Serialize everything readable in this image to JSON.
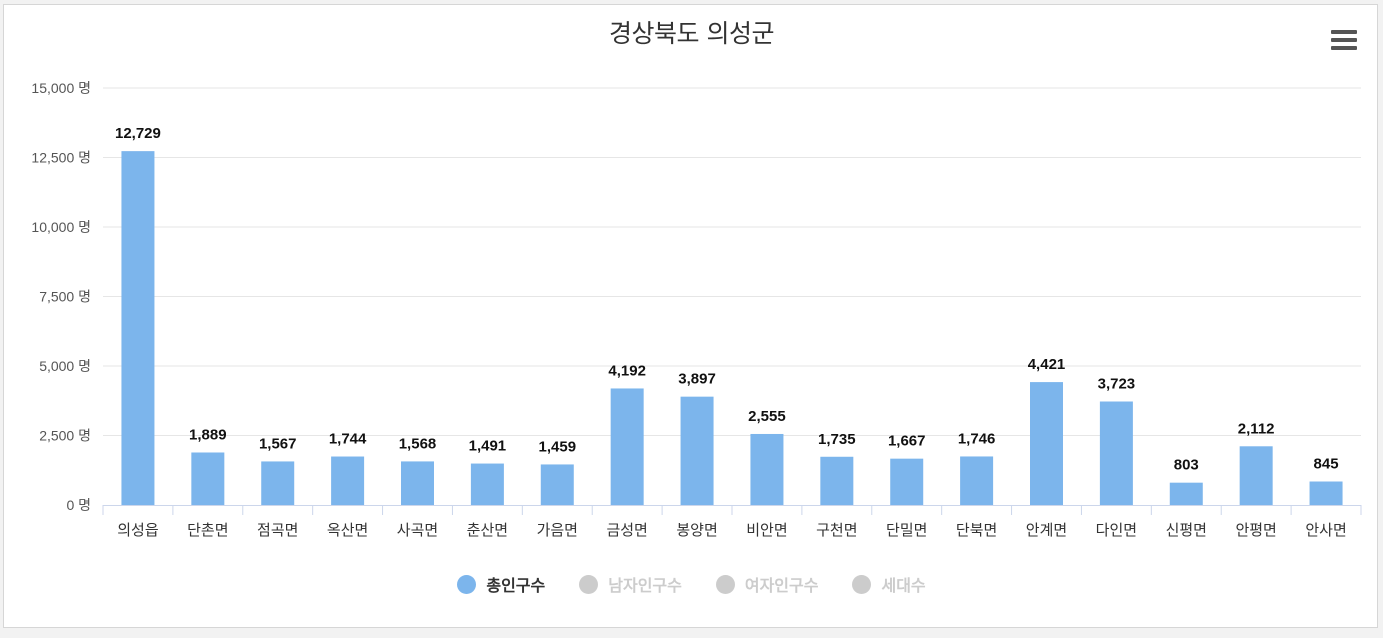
{
  "chart_data": {
    "type": "bar",
    "title": "경상북도 의성군",
    "categories": [
      "의성읍",
      "단촌면",
      "점곡면",
      "옥산면",
      "사곡면",
      "춘산면",
      "가음면",
      "금성면",
      "봉양면",
      "비안면",
      "구천면",
      "단밀면",
      "단북면",
      "안계면",
      "다인면",
      "신평면",
      "안평면",
      "안사면"
    ],
    "series": [
      {
        "name": "총인구수",
        "values": [
          12729,
          1889,
          1567,
          1744,
          1568,
          1491,
          1459,
          4192,
          3897,
          2555,
          1735,
          1667,
          1746,
          4421,
          3723,
          803,
          2112,
          845
        ],
        "visible": true
      }
    ],
    "data_labels": [
      "12,729",
      "1,889",
      "1,567",
      "1,744",
      "1,568",
      "1,491",
      "1,459",
      "4,192",
      "3,897",
      "2,555",
      "1,735",
      "1,667",
      "1,746",
      "4,421",
      "3,723",
      "803",
      "2,112",
      "845"
    ],
    "ylim": [
      0,
      15000
    ],
    "yticks": [
      0,
      2500,
      5000,
      7500,
      10000,
      12500,
      15000
    ],
    "ytick_labels": [
      "0 명",
      "2,500 명",
      "5,000 명",
      "7,500 명",
      "10,000 명",
      "12,500 명",
      "15,000 명"
    ],
    "grid": true,
    "legend_position": "bottom-center",
    "bar_color": "#7cb5ec"
  },
  "legend": {
    "items": [
      {
        "label": "총인구수",
        "active": true,
        "color": "#7cb5ec"
      },
      {
        "label": "남자인구수",
        "active": false,
        "color": "#cccccc"
      },
      {
        "label": "여자인구수",
        "active": false,
        "color": "#cccccc"
      },
      {
        "label": "세대수",
        "active": false,
        "color": "#cccccc"
      }
    ]
  },
  "colors": {
    "grid": "#e6e6e6",
    "axis": "#ccd6eb",
    "label_text": "#333333",
    "tick_text": "#555555",
    "legend_active_text": "#333333",
    "legend_inactive_text": "#cccccc"
  },
  "menu": {
    "icon": "hamburger-menu-icon"
  }
}
